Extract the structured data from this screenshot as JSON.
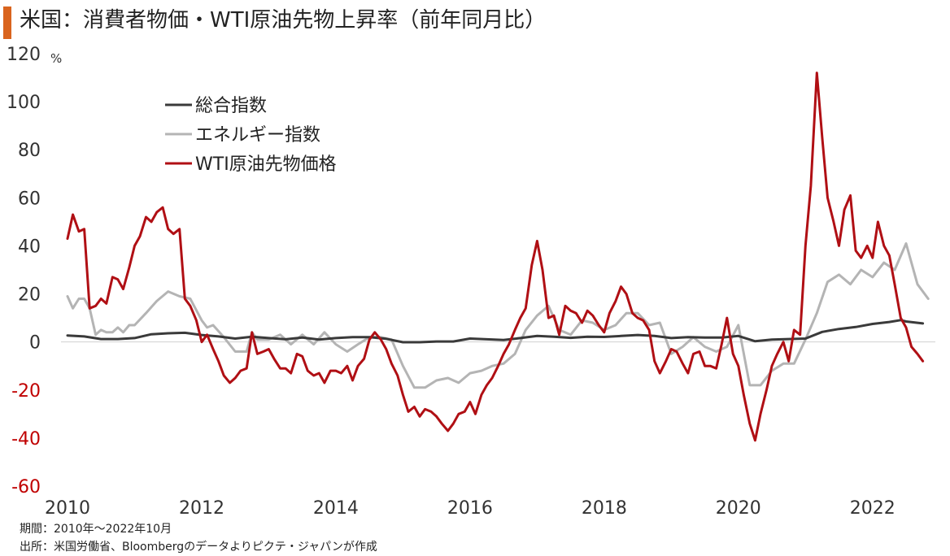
{
  "title": "米国：消費者物価・WTI原油先物上昇率（前年同月比）",
  "footer": {
    "period": "期間：2010年～2022年10月",
    "source": "出所：米国労働省、Bloombergのデータよりピクテ・ジャパンが作成"
  },
  "colors": {
    "accent_bar": "#d9641e",
    "series_total": "#3a3a3a",
    "series_energy": "#b4b4b4",
    "series_wti": "#b00f14",
    "negative_tick": "#c00000"
  },
  "chart_data": {
    "type": "line",
    "title": "米国：消費者物価・WTI原油先物上昇率（前年同月比）",
    "xlabel": "",
    "ylabel": "%",
    "ylim": [
      -60,
      120
    ],
    "xlim": [
      2010.0,
      2022.9
    ],
    "yticks": [
      120,
      100,
      80,
      60,
      40,
      20,
      0,
      -20,
      -40,
      -60
    ],
    "xticks": [
      2010,
      2012,
      2014,
      2016,
      2018,
      2020,
      2022
    ],
    "grid": false,
    "legend_position": "top-left",
    "series": [
      {
        "name": "総合指数",
        "color": "#3a3a3a",
        "points": [
          [
            2010.0,
            2.7
          ],
          [
            2010.25,
            2.3
          ],
          [
            2010.5,
            1.2
          ],
          [
            2010.75,
            1.2
          ],
          [
            2011.0,
            1.6
          ],
          [
            2011.25,
            3.2
          ],
          [
            2011.5,
            3.6
          ],
          [
            2011.75,
            3.8
          ],
          [
            2012.0,
            2.9
          ],
          [
            2012.25,
            2.3
          ],
          [
            2012.5,
            1.4
          ],
          [
            2012.75,
            2.2
          ],
          [
            2013.0,
            1.6
          ],
          [
            2013.25,
            1.1
          ],
          [
            2013.5,
            1.8
          ],
          [
            2013.75,
            1.0
          ],
          [
            2014.0,
            1.6
          ],
          [
            2014.25,
            2.0
          ],
          [
            2014.5,
            2.0
          ],
          [
            2014.75,
            1.3
          ],
          [
            2015.0,
            -0.1
          ],
          [
            2015.25,
            -0.1
          ],
          [
            2015.5,
            0.2
          ],
          [
            2015.75,
            0.2
          ],
          [
            2016.0,
            1.4
          ],
          [
            2016.25,
            1.1
          ],
          [
            2016.5,
            0.8
          ],
          [
            2016.75,
            1.6
          ],
          [
            2017.0,
            2.5
          ],
          [
            2017.25,
            2.2
          ],
          [
            2017.5,
            1.7
          ],
          [
            2017.75,
            2.2
          ],
          [
            2018.0,
            2.1
          ],
          [
            2018.25,
            2.5
          ],
          [
            2018.5,
            2.9
          ],
          [
            2018.75,
            2.5
          ],
          [
            2019.0,
            1.6
          ],
          [
            2019.25,
            2.0
          ],
          [
            2019.5,
            1.8
          ],
          [
            2019.75,
            1.8
          ],
          [
            2020.0,
            2.5
          ],
          [
            2020.25,
            0.3
          ],
          [
            2020.5,
            1.0
          ],
          [
            2020.75,
            1.2
          ],
          [
            2021.0,
            1.4
          ],
          [
            2021.25,
            4.2
          ],
          [
            2021.5,
            5.4
          ],
          [
            2021.75,
            6.2
          ],
          [
            2022.0,
            7.5
          ],
          [
            2022.25,
            8.3
          ],
          [
            2022.42,
            9.1
          ],
          [
            2022.5,
            8.5
          ],
          [
            2022.75,
            7.7
          ]
        ]
      },
      {
        "name": "エネルギー指数",
        "color": "#b4b4b4",
        "points": [
          [
            2010.0,
            19
          ],
          [
            2010.08,
            14
          ],
          [
            2010.17,
            18
          ],
          [
            2010.25,
            18
          ],
          [
            2010.33,
            14
          ],
          [
            2010.42,
            3
          ],
          [
            2010.5,
            5
          ],
          [
            2010.58,
            4
          ],
          [
            2010.67,
            4
          ],
          [
            2010.75,
            6
          ],
          [
            2010.83,
            4
          ],
          [
            2010.92,
            7
          ],
          [
            2011.0,
            7
          ],
          [
            2011.17,
            12
          ],
          [
            2011.33,
            17
          ],
          [
            2011.5,
            21
          ],
          [
            2011.67,
            19
          ],
          [
            2011.83,
            18
          ],
          [
            2012.0,
            9
          ],
          [
            2012.08,
            6
          ],
          [
            2012.17,
            7
          ],
          [
            2012.33,
            2
          ],
          [
            2012.5,
            -4
          ],
          [
            2012.67,
            -4
          ],
          [
            2012.75,
            4
          ],
          [
            2012.83,
            1
          ],
          [
            2013.0,
            1
          ],
          [
            2013.17,
            3
          ],
          [
            2013.33,
            -1
          ],
          [
            2013.5,
            3
          ],
          [
            2013.67,
            -1
          ],
          [
            2013.83,
            4
          ],
          [
            2014.0,
            -1
          ],
          [
            2014.17,
            -4
          ],
          [
            2014.33,
            -1
          ],
          [
            2014.5,
            2
          ],
          [
            2014.67,
            2
          ],
          [
            2014.83,
            1
          ],
          [
            2015.0,
            -10
          ],
          [
            2015.17,
            -19
          ],
          [
            2015.33,
            -19
          ],
          [
            2015.5,
            -16
          ],
          [
            2015.67,
            -15
          ],
          [
            2015.83,
            -17
          ],
          [
            2016.0,
            -13
          ],
          [
            2016.17,
            -12
          ],
          [
            2016.33,
            -10
          ],
          [
            2016.5,
            -9
          ],
          [
            2016.67,
            -5
          ],
          [
            2016.83,
            5
          ],
          [
            2017.0,
            11
          ],
          [
            2017.17,
            15
          ],
          [
            2017.33,
            5
          ],
          [
            2017.5,
            3
          ],
          [
            2017.67,
            9
          ],
          [
            2017.83,
            8
          ],
          [
            2018.0,
            5
          ],
          [
            2018.17,
            7
          ],
          [
            2018.33,
            12
          ],
          [
            2018.5,
            12
          ],
          [
            2018.67,
            7
          ],
          [
            2018.83,
            8
          ],
          [
            2019.0,
            -5
          ],
          [
            2019.17,
            -2
          ],
          [
            2019.33,
            2
          ],
          [
            2019.5,
            -2
          ],
          [
            2019.67,
            -4
          ],
          [
            2019.83,
            -2
          ],
          [
            2020.0,
            7
          ],
          [
            2020.17,
            -18
          ],
          [
            2020.33,
            -18
          ],
          [
            2020.5,
            -12
          ],
          [
            2020.67,
            -9
          ],
          [
            2020.83,
            -9
          ],
          [
            2021.0,
            1
          ],
          [
            2021.17,
            12
          ],
          [
            2021.33,
            25
          ],
          [
            2021.5,
            28
          ],
          [
            2021.67,
            24
          ],
          [
            2021.83,
            30
          ],
          [
            2022.0,
            27
          ],
          [
            2022.17,
            33
          ],
          [
            2022.33,
            30
          ],
          [
            2022.5,
            41
          ],
          [
            2022.67,
            24
          ],
          [
            2022.83,
            18
          ]
        ]
      },
      {
        "name": "WTI原油先物価格",
        "color": "#b00f14",
        "points": [
          [
            2010.0,
            43
          ],
          [
            2010.08,
            53
          ],
          [
            2010.17,
            46
          ],
          [
            2010.25,
            47
          ],
          [
            2010.33,
            14
          ],
          [
            2010.42,
            15
          ],
          [
            2010.5,
            18
          ],
          [
            2010.58,
            16
          ],
          [
            2010.67,
            27
          ],
          [
            2010.75,
            26
          ],
          [
            2010.83,
            22
          ],
          [
            2010.92,
            31
          ],
          [
            2011.0,
            40
          ],
          [
            2011.08,
            44
          ],
          [
            2011.17,
            52
          ],
          [
            2011.25,
            50
          ],
          [
            2011.33,
            54
          ],
          [
            2011.42,
            56
          ],
          [
            2011.5,
            47
          ],
          [
            2011.58,
            45
          ],
          [
            2011.67,
            47
          ],
          [
            2011.75,
            18
          ],
          [
            2011.83,
            15
          ],
          [
            2011.92,
            9
          ],
          [
            2012.0,
            0
          ],
          [
            2012.08,
            3
          ],
          [
            2012.17,
            -3
          ],
          [
            2012.25,
            -8
          ],
          [
            2012.33,
            -14
          ],
          [
            2012.42,
            -17
          ],
          [
            2012.5,
            -15
          ],
          [
            2012.58,
            -12
          ],
          [
            2012.67,
            -11
          ],
          [
            2012.75,
            4
          ],
          [
            2012.83,
            -5
          ],
          [
            2012.92,
            -4
          ],
          [
            2013.0,
            -3
          ],
          [
            2013.08,
            -7
          ],
          [
            2013.17,
            -11
          ],
          [
            2013.25,
            -11
          ],
          [
            2013.33,
            -13
          ],
          [
            2013.42,
            -5
          ],
          [
            2013.5,
            -6
          ],
          [
            2013.58,
            -12
          ],
          [
            2013.67,
            -14
          ],
          [
            2013.75,
            -13
          ],
          [
            2013.83,
            -17
          ],
          [
            2013.92,
            -12
          ],
          [
            2014.0,
            -12
          ],
          [
            2014.08,
            -13
          ],
          [
            2014.17,
            -10
          ],
          [
            2014.25,
            -16
          ],
          [
            2014.33,
            -10
          ],
          [
            2014.42,
            -7
          ],
          [
            2014.5,
            1
          ],
          [
            2014.58,
            4
          ],
          [
            2014.67,
            1
          ],
          [
            2014.75,
            -3
          ],
          [
            2014.83,
            -9
          ],
          [
            2014.92,
            -14
          ],
          [
            2015.0,
            -22
          ],
          [
            2015.08,
            -29
          ],
          [
            2015.17,
            -27
          ],
          [
            2015.25,
            -31
          ],
          [
            2015.33,
            -28
          ],
          [
            2015.42,
            -29
          ],
          [
            2015.5,
            -31
          ],
          [
            2015.58,
            -34
          ],
          [
            2015.67,
            -37
          ],
          [
            2015.75,
            -34
          ],
          [
            2015.83,
            -30
          ],
          [
            2015.92,
            -29
          ],
          [
            2016.0,
            -25
          ],
          [
            2016.08,
            -30
          ],
          [
            2016.17,
            -22
          ],
          [
            2016.25,
            -18
          ],
          [
            2016.33,
            -15
          ],
          [
            2016.42,
            -10
          ],
          [
            2016.5,
            -5
          ],
          [
            2016.58,
            -1
          ],
          [
            2016.67,
            5
          ],
          [
            2016.75,
            10
          ],
          [
            2016.83,
            14
          ],
          [
            2016.92,
            32
          ],
          [
            2017.0,
            42
          ],
          [
            2017.08,
            30
          ],
          [
            2017.17,
            10
          ],
          [
            2017.25,
            11
          ],
          [
            2017.33,
            3
          ],
          [
            2017.42,
            15
          ],
          [
            2017.5,
            13
          ],
          [
            2017.58,
            12
          ],
          [
            2017.67,
            8
          ],
          [
            2017.75,
            13
          ],
          [
            2017.83,
            11
          ],
          [
            2017.92,
            7
          ],
          [
            2018.0,
            4
          ],
          [
            2018.08,
            12
          ],
          [
            2018.17,
            17
          ],
          [
            2018.25,
            23
          ],
          [
            2018.33,
            20
          ],
          [
            2018.42,
            12
          ],
          [
            2018.5,
            10
          ],
          [
            2018.58,
            9
          ],
          [
            2018.67,
            5
          ],
          [
            2018.75,
            -8
          ],
          [
            2018.83,
            -13
          ],
          [
            2018.92,
            -8
          ],
          [
            2019.0,
            -3
          ],
          [
            2019.08,
            -4
          ],
          [
            2019.17,
            -9
          ],
          [
            2019.25,
            -13
          ],
          [
            2019.33,
            -5
          ],
          [
            2019.42,
            -4
          ],
          [
            2019.5,
            -10
          ],
          [
            2019.58,
            -10
          ],
          [
            2019.67,
            -11
          ],
          [
            2019.75,
            -1
          ],
          [
            2019.83,
            10
          ],
          [
            2019.92,
            -5
          ],
          [
            2020.0,
            -10
          ],
          [
            2020.08,
            -22
          ],
          [
            2020.17,
            -34
          ],
          [
            2020.25,
            -41
          ],
          [
            2020.33,
            -30
          ],
          [
            2020.42,
            -20
          ],
          [
            2020.5,
            -10
          ],
          [
            2020.58,
            -5
          ],
          [
            2020.67,
            0
          ],
          [
            2020.75,
            -8
          ],
          [
            2020.83,
            5
          ],
          [
            2020.92,
            3
          ],
          [
            2021.0,
            40
          ],
          [
            2021.08,
            65
          ],
          [
            2021.17,
            112
          ],
          [
            2021.25,
            85
          ],
          [
            2021.33,
            60
          ],
          [
            2021.42,
            50
          ],
          [
            2021.5,
            40
          ],
          [
            2021.58,
            55
          ],
          [
            2021.67,
            61
          ],
          [
            2021.75,
            38
          ],
          [
            2021.83,
            35
          ],
          [
            2021.92,
            40
          ],
          [
            2022.0,
            35
          ],
          [
            2022.08,
            50
          ],
          [
            2022.17,
            40
          ],
          [
            2022.25,
            36
          ],
          [
            2022.33,
            24
          ],
          [
            2022.42,
            10
          ],
          [
            2022.5,
            6
          ],
          [
            2022.58,
            -2
          ],
          [
            2022.67,
            -5
          ],
          [
            2022.75,
            -8
          ]
        ]
      }
    ]
  }
}
